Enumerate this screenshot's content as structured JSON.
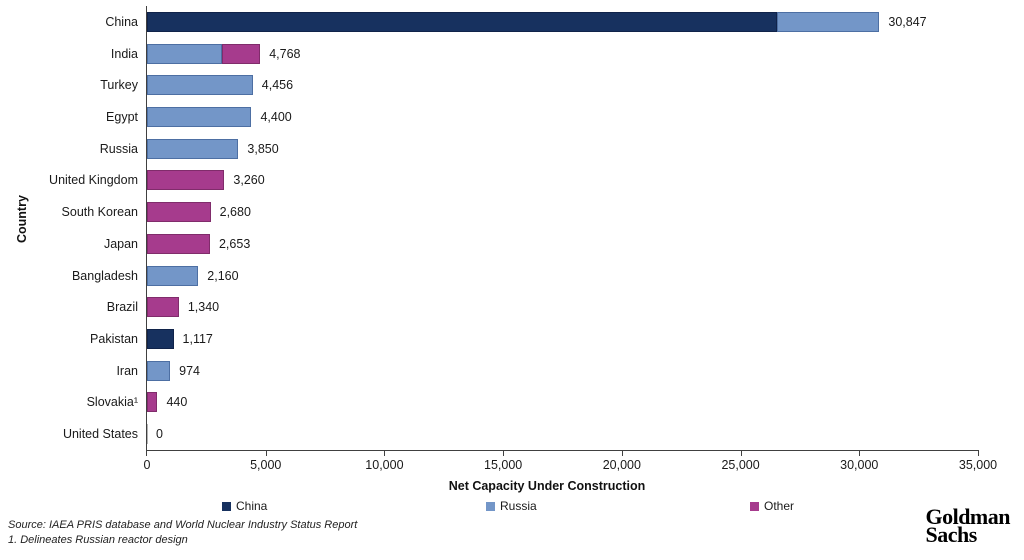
{
  "chart_data": {
    "type": "bar",
    "orientation": "horizontal",
    "stacked": true,
    "title": "",
    "xlabel": "Net Capacity Under Construction",
    "ylabel": "Country",
    "xlim": [
      0,
      35000
    ],
    "xticks": [
      0,
      5000,
      10000,
      15000,
      20000,
      25000,
      30000,
      35000
    ],
    "xtick_labels": [
      "0",
      "5,000",
      "10,000",
      "15,000",
      "20,000",
      "25,000",
      "30,000",
      "35,000"
    ],
    "grid": false,
    "legend_position": "bottom",
    "legend": [
      {
        "name": "China",
        "color": "#17315f"
      },
      {
        "name": "Russia",
        "color": "#7396c8"
      },
      {
        "name": "Other",
        "color": "#a63b8d"
      }
    ],
    "series_colors": {
      "China": "#17315f",
      "Russia": "#7396c8",
      "Other": "#a63b8d"
    },
    "series_borders": {
      "China": "#10234a",
      "Russia": "#4d6fa3",
      "Other": "#802c6b"
    },
    "rows": [
      {
        "country": "China",
        "total": 30847,
        "total_label": "30,847",
        "segments": [
          {
            "series": "China",
            "value": 26547
          },
          {
            "series": "Russia",
            "value": 4300
          }
        ]
      },
      {
        "country": "India",
        "total": 4768,
        "total_label": "4,768",
        "segments": [
          {
            "series": "Russia",
            "value": 3168
          },
          {
            "series": "Other",
            "value": 1600
          }
        ]
      },
      {
        "country": "Turkey",
        "total": 4456,
        "total_label": "4,456",
        "segments": [
          {
            "series": "Russia",
            "value": 4456
          }
        ]
      },
      {
        "country": "Egypt",
        "total": 4400,
        "total_label": "4,400",
        "segments": [
          {
            "series": "Russia",
            "value": 4400
          }
        ]
      },
      {
        "country": "Russia",
        "total": 3850,
        "total_label": "3,850",
        "segments": [
          {
            "series": "Russia",
            "value": 3850
          }
        ]
      },
      {
        "country": "United Kingdom",
        "total": 3260,
        "total_label": "3,260",
        "segments": [
          {
            "series": "Other",
            "value": 3260
          }
        ]
      },
      {
        "country": "South Korean",
        "total": 2680,
        "total_label": "2,680",
        "segments": [
          {
            "series": "Other",
            "value": 2680
          }
        ]
      },
      {
        "country": "Japan",
        "total": 2653,
        "total_label": "2,653",
        "segments": [
          {
            "series": "Other",
            "value": 2653
          }
        ]
      },
      {
        "country": "Bangladesh",
        "total": 2160,
        "total_label": "2,160",
        "segments": [
          {
            "series": "Russia",
            "value": 2160
          }
        ]
      },
      {
        "country": "Brazil",
        "total": 1340,
        "total_label": "1,340",
        "segments": [
          {
            "series": "Other",
            "value": 1340
          }
        ]
      },
      {
        "country": "Pakistan",
        "total": 1117,
        "total_label": "1,117",
        "segments": [
          {
            "series": "China",
            "value": 1117
          }
        ]
      },
      {
        "country": "Iran",
        "total": 974,
        "total_label": "974",
        "segments": [
          {
            "series": "Russia",
            "value": 974
          }
        ]
      },
      {
        "country": "Slovakia¹",
        "total": 440,
        "total_label": "440",
        "segments": [
          {
            "series": "Other",
            "value": 440
          }
        ]
      },
      {
        "country": "United States",
        "total": 0,
        "total_label": "0",
        "segments": []
      }
    ]
  },
  "footnotes": {
    "source": "Source: IAEA PRIS database and World Nuclear Industry Status Report",
    "note1": "1.  Delineates Russian reactor design"
  },
  "logo": {
    "line1": "Goldman",
    "line2": "Sachs"
  }
}
